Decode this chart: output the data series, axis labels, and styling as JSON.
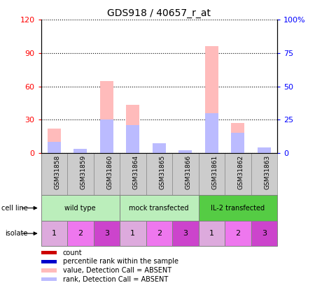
{
  "title": "GDS918 / 40657_r_at",
  "samples": [
    "GSM31858",
    "GSM31859",
    "GSM31860",
    "GSM31864",
    "GSM31865",
    "GSM31866",
    "GSM31861",
    "GSM31862",
    "GSM31863"
  ],
  "value_absent": [
    22,
    0,
    65,
    43,
    7,
    2,
    96,
    27,
    5
  ],
  "rank_absent_pct": [
    8,
    3,
    25,
    21,
    7,
    2,
    30,
    15,
    4
  ],
  "count": [
    0,
    0,
    0,
    0,
    0,
    0,
    0,
    0,
    0
  ],
  "percentile_rank": [
    0,
    0,
    0,
    0,
    0,
    0,
    0,
    0,
    0
  ],
  "ylim_left": [
    0,
    120
  ],
  "ylim_right": [
    0,
    100
  ],
  "yticks_left": [
    0,
    30,
    60,
    90,
    120
  ],
  "yticks_right": [
    0,
    25,
    50,
    75,
    100
  ],
  "ytick_labels_left": [
    "0",
    "30",
    "60",
    "90",
    "120"
  ],
  "ytick_labels_right": [
    "0",
    "25",
    "50",
    "75",
    "100%"
  ],
  "cell_line_groups": [
    {
      "label": "wild type",
      "start": 0,
      "end": 3,
      "color": "#aaddaa"
    },
    {
      "label": "mock transfected",
      "start": 3,
      "end": 6,
      "color": "#aaddaa"
    },
    {
      "label": "IL-2 transfected",
      "start": 6,
      "end": 9,
      "color": "#44bb44"
    }
  ],
  "isolate_labels": [
    "1",
    "2",
    "3",
    "1",
    "2",
    "3",
    "1",
    "2",
    "3"
  ],
  "color_value_absent": "#ffbbbb",
  "color_rank_absent": "#bbbbff",
  "color_count": "#cc0000",
  "color_percentile": "#0000cc",
  "background_color": "#ffffff"
}
